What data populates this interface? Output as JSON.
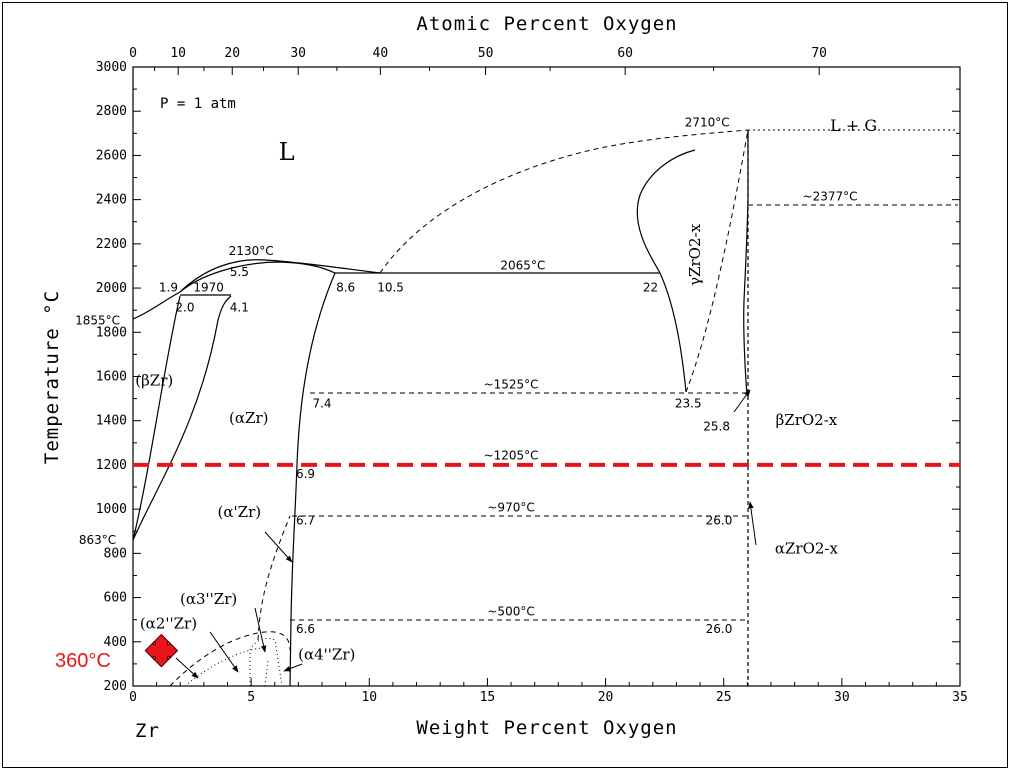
{
  "chart_data": {
    "type": "phase-diagram",
    "title": "",
    "xlabel": "Weight Percent Oxygen",
    "x2label": "Atomic Percent Oxygen",
    "ylabel": "Temperature °C",
    "xlim": [
      0,
      35
    ],
    "ylim": [
      200,
      3000
    ],
    "x_ticks": [
      0,
      5,
      10,
      15,
      20,
      25,
      30,
      35
    ],
    "x2_ticks": [
      0,
      10,
      20,
      30,
      40,
      50,
      60,
      70
    ],
    "y_ticks": [
      200,
      400,
      600,
      800,
      1000,
      1200,
      1400,
      1600,
      1800,
      2000,
      2200,
      2400,
      2600,
      2800,
      3000
    ],
    "condition": "P = 1 atm",
    "element_label": "Zr",
    "regions": [
      {
        "name": "L",
        "x": 6.5,
        "y": 2580
      },
      {
        "name": "L + G",
        "x": 30.5,
        "y": 2710
      },
      {
        "name": "(βZr)",
        "x": 0.9,
        "y": 1560
      },
      {
        "name": "(αZr)",
        "x": 4.9,
        "y": 1390
      },
      {
        "name": "(α'Zr)",
        "x": 4.5,
        "y": 965
      },
      {
        "name": "(α3''Zr)",
        "x": 3.2,
        "y": 570
      },
      {
        "name": "(α2''Zr)",
        "x": 1.5,
        "y": 460
      },
      {
        "name": "(α4''Zr)",
        "x": 8.2,
        "y": 320
      },
      {
        "name": "γZrO2-x",
        "x": 24.0,
        "y": 2150
      },
      {
        "name": "βZrO2-x",
        "x": 28.5,
        "y": 1380
      },
      {
        "name": "αZrO2-x",
        "x": 28.5,
        "y": 800
      }
    ],
    "annotations": [
      {
        "text": "2710°C",
        "x": 24.3,
        "y": 2730
      },
      {
        "text": "~2377°C",
        "x": 29.5,
        "y": 2395
      },
      {
        "text": "2130°C",
        "x": 5.0,
        "y": 2150
      },
      {
        "text": "2065°C",
        "x": 16.5,
        "y": 2085
      },
      {
        "text": "1970",
        "x": 3.2,
        "y": 1985
      },
      {
        "text": "1.9",
        "x": 1.5,
        "y": 1985
      },
      {
        "text": "2.0",
        "x": 2.2,
        "y": 1895
      },
      {
        "text": "4.1",
        "x": 4.5,
        "y": 1895
      },
      {
        "text": "5.5",
        "x": 4.5,
        "y": 2055
      },
      {
        "text": "8.6",
        "x": 9.0,
        "y": 1985
      },
      {
        "text": "10.5",
        "x": 10.9,
        "y": 1985
      },
      {
        "text": "22",
        "x": 21.9,
        "y": 1985
      },
      {
        "text": "1855°C",
        "x": -1.5,
        "y": 1835
      },
      {
        "text": "863°C",
        "x": -1.5,
        "y": 843
      },
      {
        "text": "~1525°C",
        "x": 16.0,
        "y": 1545
      },
      {
        "text": "7.4",
        "x": 8.0,
        "y": 1460
      },
      {
        "text": "23.5",
        "x": 23.5,
        "y": 1460
      },
      {
        "text": "25.8",
        "x": 24.7,
        "y": 1355
      },
      {
        "text": "~1205°C",
        "x": 16.0,
        "y": 1225
      },
      {
        "text": "6.9",
        "x": 7.3,
        "y": 1140
      },
      {
        "text": "~970°C",
        "x": 16.0,
        "y": 990
      },
      {
        "text": "6.7",
        "x": 7.3,
        "y": 930
      },
      {
        "text": "26.0",
        "x": 24.8,
        "y": 930
      },
      {
        "text": "~500°C",
        "x": 16.0,
        "y": 520
      },
      {
        "text": "6.6",
        "x": 7.3,
        "y": 440
      },
      {
        "text": "26.0",
        "x": 24.8,
        "y": 440
      }
    ],
    "highlight_line": {
      "y": 1200,
      "color": "#e8161b",
      "style": "dashed"
    },
    "marker": {
      "x": 1.2,
      "y": 360,
      "label": "360°C",
      "color": "#e8161b"
    }
  }
}
